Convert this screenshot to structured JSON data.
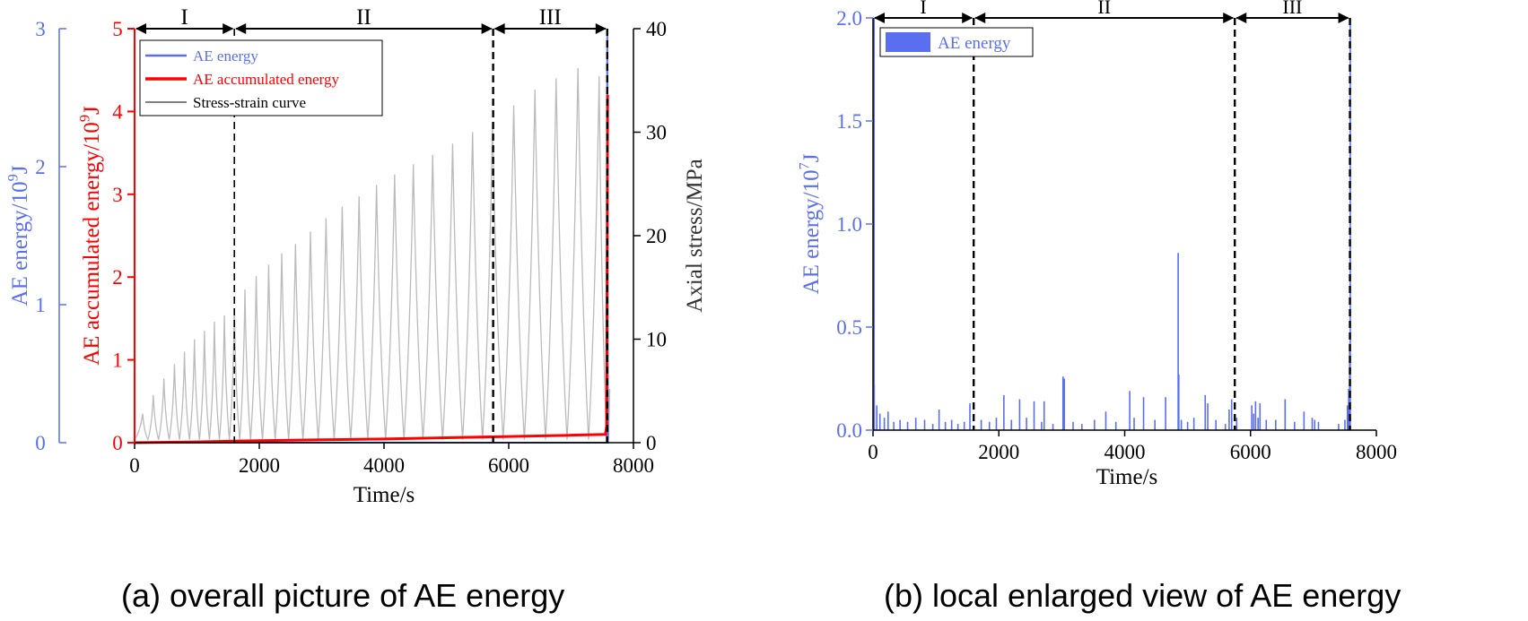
{
  "colors": {
    "energy": "#5a6ff0",
    "accumulated": "#ff0000",
    "stress": "#bbbbbb",
    "stage_line": "#000000"
  },
  "chart_data": [
    {
      "id": "a",
      "type": "line",
      "caption": "(a) overall picture of AE energy",
      "xlabel": "Time/s",
      "xlim": [
        0,
        8000
      ],
      "xticks": [
        "0",
        "2000",
        "4000",
        "6000",
        "8000"
      ],
      "axes": {
        "energy": {
          "label_main": "AE energy/10",
          "label_exp": "9",
          "label_unit": "J",
          "ylim": [
            0,
            3
          ],
          "ticks": [
            "0",
            "1",
            "2",
            "3"
          ]
        },
        "accumulated": {
          "label_main": "AE accumulated energy/10",
          "label_exp": "9",
          "label_unit": "J",
          "ylim": [
            0,
            5
          ],
          "ticks": [
            "0",
            "1",
            "2",
            "3",
            "4",
            "5"
          ]
        },
        "stress": {
          "label": "Axial stress/MPa",
          "ylim": [
            0,
            40
          ],
          "ticks": [
            "0",
            "10",
            "20",
            "30",
            "40"
          ]
        }
      },
      "legend": [
        "AE energy",
        "AE accumulated energy",
        "Stress-strain curve"
      ],
      "stages": [
        {
          "label": "I",
          "start": 0,
          "end": 1600
        },
        {
          "label": "II",
          "start": 1600,
          "end": 5750
        },
        {
          "label": "III",
          "start": 5750,
          "end": 7580
        }
      ],
      "series": {
        "stress_cycles": {
          "name": "Stress-strain curve",
          "peak_times": [
            130,
            300,
            470,
            640,
            800,
            960,
            1120,
            1280,
            1440,
            1600,
            1770,
            1950,
            2150,
            2360,
            2580,
            2820,
            3070,
            3330,
            3600,
            3880,
            4170,
            4470,
            4780,
            5100,
            5420,
            5740,
            6080,
            6420,
            6760,
            7110,
            7450
          ],
          "peak_values": [
            2.8,
            4.6,
            6.2,
            7.6,
            8.8,
            10.0,
            10.8,
            11.7,
            12.3,
            13.0,
            14.8,
            16.1,
            17.2,
            18.3,
            19.2,
            20.4,
            21.7,
            22.8,
            23.8,
            24.9,
            25.9,
            26.9,
            27.8,
            28.9,
            30.0,
            30.9,
            32.6,
            34.1,
            35.2,
            36.2,
            35.4
          ],
          "residual_stress": 0.3
        },
        "accumulated": {
          "name": "AE accumulated energy",
          "x": [
            0,
            1000,
            2000,
            3000,
            4000,
            5000,
            6000,
            7000,
            7550,
            7570,
            7580,
            7585
          ],
          "y": [
            0,
            0.01,
            0.025,
            0.035,
            0.045,
            0.06,
            0.075,
            0.09,
            0.1,
            0.2,
            2.5,
            4.2
          ]
        },
        "energy": {
          "name": "AE energy",
          "x": [
            0,
            7570,
            7580,
            7590,
            7600
          ],
          "y": [
            0,
            0,
            3.0,
            0,
            0
          ]
        }
      }
    },
    {
      "id": "b",
      "type": "bar",
      "caption": "(b) local enlarged view of AE energy",
      "xlabel": "Time/s",
      "xlim": [
        0,
        8000
      ],
      "xticks": [
        "0",
        "2000",
        "4000",
        "6000",
        "8000"
      ],
      "ylabel_main": "AE energy/10",
      "ylabel_exp": "7",
      "ylabel_unit": "J",
      "ylim": [
        0,
        2.0
      ],
      "yticks": [
        "0.0",
        "0.5",
        "1.0",
        "1.5",
        "2.0"
      ],
      "legend": [
        "AE energy"
      ],
      "stages": [
        {
          "label": "I",
          "start": 0,
          "end": 1600
        },
        {
          "label": "II",
          "start": 1600,
          "end": 5750
        },
        {
          "label": "III",
          "start": 5750,
          "end": 7580
        }
      ],
      "spikes": {
        "x": [
          20,
          60,
          110,
          180,
          240,
          330,
          430,
          550,
          680,
          820,
          950,
          1050,
          1150,
          1250,
          1350,
          1450,
          1540,
          1720,
          1850,
          1960,
          2080,
          2200,
          2330,
          2440,
          2560,
          2680,
          2720,
          2860,
          3020,
          3040,
          3180,
          3320,
          3520,
          3700,
          3860,
          4080,
          4150,
          4300,
          4480,
          4650,
          4850,
          4860,
          4900,
          5000,
          5100,
          5280,
          5320,
          5450,
          5600,
          5660,
          5700,
          5780,
          6020,
          6050,
          6080,
          6120,
          6150,
          6250,
          6400,
          6550,
          6700,
          6850,
          6980,
          7020,
          7080,
          7400,
          7500,
          7540,
          7560,
          7575,
          7585
        ],
        "values": [
          0.22,
          0.12,
          0.08,
          0.06,
          0.09,
          0.04,
          0.05,
          0.04,
          0.06,
          0.05,
          0.03,
          0.1,
          0.04,
          0.05,
          0.03,
          0.04,
          0.13,
          0.05,
          0.04,
          0.06,
          0.17,
          0.05,
          0.15,
          0.06,
          0.14,
          0.04,
          0.14,
          0.03,
          0.26,
          0.25,
          0.04,
          0.03,
          0.05,
          0.09,
          0.04,
          0.19,
          0.06,
          0.16,
          0.05,
          0.16,
          0.86,
          0.27,
          0.05,
          0.04,
          0.06,
          0.17,
          0.13,
          0.05,
          0.03,
          0.1,
          0.15,
          0.06,
          0.12,
          0.08,
          0.14,
          0.06,
          0.13,
          0.05,
          0.05,
          0.15,
          0.04,
          0.09,
          0.06,
          0.05,
          0.04,
          0.03,
          0.05,
          0.12,
          0.2,
          0.42,
          2.0
        ]
      }
    }
  ]
}
